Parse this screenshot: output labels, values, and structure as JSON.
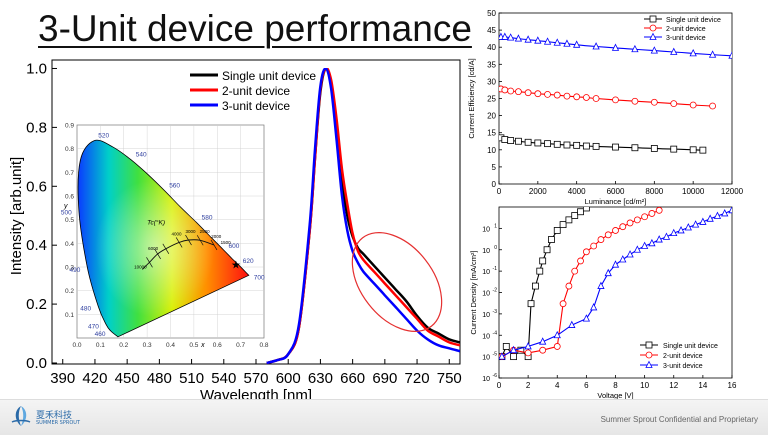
{
  "slide": {
    "title": "3-Unit device performance",
    "footer": "Summer Sprout Confidential and Proprietary",
    "logo_text": "夏禾科技",
    "logo_sub": "SUMMER SPROUT"
  },
  "chart_data": [
    {
      "id": "spectrum",
      "type": "line",
      "xlabel": "Wavelength [nm]",
      "ylabel": "Intensity [arb.unit]",
      "xlim": [
        380,
        760
      ],
      "ylim": [
        0,
        1.0
      ],
      "xticks": [
        390,
        420,
        450,
        480,
        510,
        540,
        570,
        600,
        630,
        660,
        690,
        720,
        750
      ],
      "yticks": [
        0.0,
        0.2,
        0.4,
        0.6,
        0.8,
        1.0
      ],
      "legend_position": "top-right",
      "series": [
        {
          "name": "Single unit device",
          "color": "#000000",
          "x": [
            580,
            590,
            600,
            610,
            620,
            625,
            630,
            635,
            640,
            645,
            650,
            655,
            660,
            665,
            670,
            680,
            690,
            700,
            710,
            720,
            730,
            740,
            750,
            760
          ],
          "y": [
            0.0,
            0.01,
            0.03,
            0.12,
            0.45,
            0.7,
            0.92,
            1.0,
            0.95,
            0.8,
            0.62,
            0.5,
            0.43,
            0.39,
            0.37,
            0.33,
            0.29,
            0.25,
            0.21,
            0.16,
            0.12,
            0.1,
            0.08,
            0.07
          ]
        },
        {
          "name": "2-unit device",
          "color": "#ff0000",
          "x": [
            580,
            590,
            600,
            610,
            620,
            625,
            630,
            635,
            640,
            645,
            650,
            655,
            660,
            665,
            670,
            680,
            690,
            700,
            710,
            720,
            730,
            740,
            750,
            760
          ],
          "y": [
            0.0,
            0.01,
            0.03,
            0.12,
            0.45,
            0.7,
            0.93,
            1.0,
            0.96,
            0.83,
            0.66,
            0.54,
            0.44,
            0.38,
            0.35,
            0.31,
            0.27,
            0.23,
            0.19,
            0.15,
            0.11,
            0.09,
            0.07,
            0.06
          ]
        },
        {
          "name": "3-unit device",
          "color": "#0000ff",
          "x": [
            580,
            590,
            600,
            610,
            620,
            625,
            630,
            635,
            640,
            645,
            650,
            655,
            660,
            665,
            670,
            680,
            690,
            700,
            710,
            720,
            730,
            740,
            750,
            760
          ],
          "y": [
            0.0,
            0.01,
            0.03,
            0.13,
            0.47,
            0.73,
            0.94,
            1.0,
            0.93,
            0.76,
            0.57,
            0.45,
            0.38,
            0.34,
            0.31,
            0.27,
            0.23,
            0.19,
            0.15,
            0.11,
            0.08,
            0.06,
            0.05,
            0.04
          ]
        }
      ]
    },
    {
      "id": "cie",
      "type": "scatter",
      "xlabel": "x",
      "ylabel": "y",
      "xlim": [
        0.0,
        0.8
      ],
      "ylim": [
        0.0,
        0.9
      ],
      "xticks": [
        0.0,
        0.1,
        0.2,
        0.3,
        0.4,
        0.5,
        0.6,
        0.7,
        0.8
      ],
      "yticks": [
        0.1,
        0.2,
        0.3,
        0.4,
        0.5,
        0.6,
        0.7,
        0.8,
        0.9
      ],
      "wavelength_labels": [
        "460",
        "470",
        "480",
        "490",
        "500",
        "520",
        "540",
        "560",
        "580",
        "600",
        "620",
        "700"
      ],
      "locus_label": "Tc(°K)",
      "temperature_labels": [
        "10000",
        "6000",
        "4000",
        "3000",
        "2500",
        "2000",
        "1500"
      ],
      "series": [
        {
          "name": "",
          "x": [
            0.68
          ],
          "y": [
            0.31
          ]
        }
      ]
    },
    {
      "id": "efficiency",
      "type": "scatter",
      "xlabel": "Luminance [cd/m²]",
      "ylabel": "Current Efficiency [cd/A]",
      "xlim": [
        0,
        12000
      ],
      "ylim": [
        0,
        50
      ],
      "xticks": [
        0,
        2000,
        4000,
        6000,
        8000,
        10000,
        12000
      ],
      "yticks": [
        0,
        5,
        10,
        15,
        20,
        25,
        30,
        35,
        40,
        45,
        50
      ],
      "legend_position": "top-right",
      "series": [
        {
          "name": "Single unit device",
          "color": "#000000",
          "marker": "square",
          "x": [
            100,
            300,
            600,
            1000,
            1500,
            2000,
            2500,
            3000,
            3500,
            4000,
            4500,
            5000,
            6000,
            7000,
            8000,
            9000,
            10000,
            10500
          ],
          "y": [
            13.5,
            13.0,
            12.7,
            12.5,
            12.2,
            12.0,
            11.8,
            11.6,
            11.4,
            11.3,
            11.1,
            11.0,
            10.8,
            10.6,
            10.4,
            10.2,
            10.0,
            9.9
          ]
        },
        {
          "name": "2-unit device",
          "color": "#ff0000",
          "marker": "circle",
          "x": [
            100,
            300,
            600,
            1000,
            1500,
            2000,
            2500,
            3000,
            3500,
            4000,
            4500,
            5000,
            6000,
            7000,
            8000,
            9000,
            10000,
            11000
          ],
          "y": [
            27.8,
            27.5,
            27.2,
            27.0,
            26.7,
            26.4,
            26.2,
            26.0,
            25.7,
            25.5,
            25.3,
            25.0,
            24.6,
            24.2,
            23.9,
            23.5,
            23.1,
            22.8
          ]
        },
        {
          "name": "3-unit device",
          "color": "#0000ff",
          "marker": "triangle",
          "x": [
            100,
            300,
            600,
            1000,
            1500,
            2000,
            2500,
            3000,
            3500,
            4000,
            5000,
            6000,
            7000,
            8000,
            9000,
            10000,
            11000,
            12000
          ],
          "y": [
            43.0,
            43.0,
            42.8,
            42.5,
            42.2,
            41.9,
            41.6,
            41.3,
            41.0,
            40.7,
            40.2,
            39.8,
            39.4,
            39.0,
            38.6,
            38.2,
            37.8,
            37.5
          ]
        }
      ]
    },
    {
      "id": "jv",
      "type": "line",
      "xlabel": "Voltage [V]",
      "ylabel": "Current Density [mA/cm²]",
      "xlim": [
        0,
        16
      ],
      "ylim": [
        1e-06,
        100
      ],
      "yscale": "log",
      "xticks": [
        0,
        2,
        4,
        6,
        8,
        10,
        12,
        14,
        16
      ],
      "ytick_labels": [
        "10^-6",
        "10^-5",
        "10^-4",
        "10^-3",
        "10^-2",
        "10^-1",
        "10^0",
        "10^1"
      ],
      "legend_position": "bottom-right",
      "series": [
        {
          "name": "Single unit device",
          "color": "#000000",
          "marker": "square",
          "x": [
            0.2,
            0.5,
            1.0,
            1.5,
            2.0,
            2.2,
            2.5,
            2.8,
            3.0,
            3.3,
            3.6,
            4.0,
            4.4,
            4.8,
            5.2,
            5.6,
            6.0
          ],
          "y": [
            1e-05,
            3e-05,
            1e-05,
            2e-05,
            1e-05,
            0.003,
            0.02,
            0.1,
            0.3,
            1,
            3,
            8,
            15,
            25,
            40,
            60,
            90
          ]
        },
        {
          "name": "2-unit device",
          "color": "#ff0000",
          "marker": "circle",
          "x": [
            0.2,
            1,
            2,
            3,
            4.0,
            4.4,
            4.8,
            5.2,
            5.6,
            6.0,
            6.5,
            7.0,
            7.5,
            8.0,
            8.5,
            9.0,
            9.5,
            10.0,
            10.5,
            11.0
          ],
          "y": [
            1e-05,
            2e-05,
            1.5e-05,
            2e-05,
            3e-05,
            0.003,
            0.02,
            0.1,
            0.3,
            0.8,
            1.5,
            3,
            5,
            8,
            12,
            18,
            25,
            35,
            50,
            70
          ]
        },
        {
          "name": "3-unit device",
          "color": "#0000ff",
          "marker": "triangle",
          "x": [
            0.2,
            1,
            2,
            3,
            4,
            5,
            6,
            6.5,
            7,
            7.5,
            8,
            8.5,
            9,
            9.5,
            10,
            10.5,
            11,
            11.5,
            12,
            12.5,
            13,
            13.5,
            14,
            14.5,
            15,
            15.5,
            16
          ],
          "y": [
            1e-05,
            2e-05,
            3e-05,
            5e-05,
            0.0001,
            0.0003,
            0.0006,
            0.002,
            0.02,
            0.08,
            0.2,
            0.35,
            0.6,
            1,
            1.5,
            2,
            3,
            4,
            6,
            8,
            11,
            15,
            20,
            28,
            38,
            50,
            70
          ]
        }
      ]
    }
  ]
}
